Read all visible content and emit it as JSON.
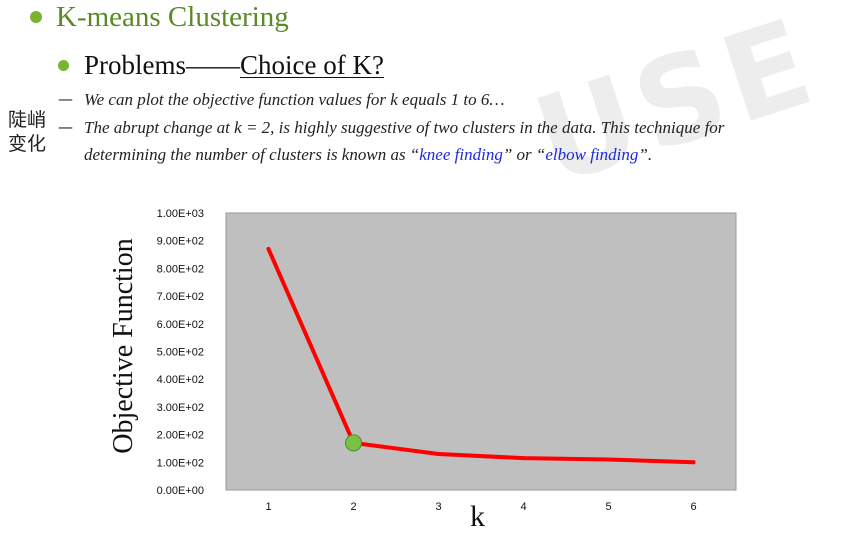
{
  "watermark": "USE",
  "slide": {
    "title": "K-means Clustering",
    "subheading_prefix": "Problems——",
    "subheading_link": "Choice of K?",
    "line1": "We can plot the objective function values for k equals 1 to 6…",
    "line2_main": "The abrupt change at k = 2, is highly suggestive of two clusters in the data. This technique for",
    "line3_before": "determining the number of clusters is known as “",
    "line3_link1": "knee finding",
    "line3_mid": "” or “",
    "line3_link2": "elbow finding",
    "line3_end": "”.",
    "dash_symbol": "—",
    "annotation_cn": "陡峭\n变化"
  },
  "colors": {
    "bullet": "#7bb32e",
    "title": "#5a8a24",
    "link": "#1d2bd9",
    "plot_bg": "#bfbfbf",
    "line": "#ff0000",
    "marker": "#7ac143"
  },
  "chart_data": {
    "type": "line",
    "xlabel": "k",
    "ylabel": "Objective Function",
    "categories": [
      "1",
      "2",
      "3",
      "4",
      "5",
      "6"
    ],
    "series": [
      {
        "values": [
          870,
          170,
          130,
          115,
          110,
          100
        ]
      }
    ],
    "ylim": [
      0,
      1000
    ],
    "yticks": [
      "0.00E+00",
      "1.00E+02",
      "2.00E+02",
      "3.00E+02",
      "4.00E+02",
      "5.00E+02",
      "6.00E+02",
      "7.00E+02",
      "8.00E+02",
      "9.00E+02",
      "1.00E+03"
    ],
    "highlight_point": {
      "x": "2",
      "y": 170
    },
    "grid": false
  }
}
